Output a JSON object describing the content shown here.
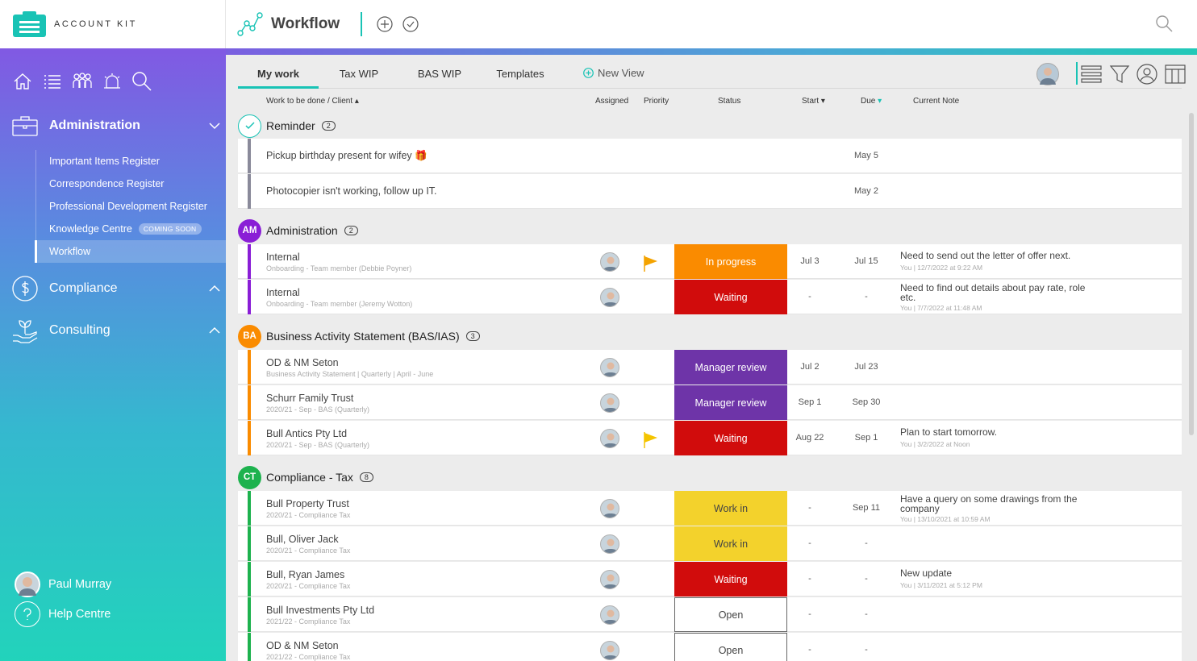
{
  "brand": {
    "name": "ACCOUNT KIT",
    "accent": "#19c3b5"
  },
  "header": {
    "title": "Workflow"
  },
  "sidebar": {
    "sections": [
      {
        "label": "Administration"
      },
      {
        "label": "Compliance"
      },
      {
        "label": "Consulting"
      }
    ],
    "admin_items": [
      {
        "label": "Important Items Register"
      },
      {
        "label": "Correspondence Register"
      },
      {
        "label": "Professional Development Register"
      },
      {
        "label": "Knowledge Centre",
        "badge": "COMING SOON"
      },
      {
        "label": "Workflow"
      }
    ],
    "user": {
      "name": "Paul Murray"
    },
    "help": {
      "label": "Help Centre"
    }
  },
  "tabs": [
    {
      "label": "My work"
    },
    {
      "label": "Tax WIP"
    },
    {
      "label": "BAS WIP"
    },
    {
      "label": "Templates"
    }
  ],
  "new_view": {
    "label": "New View"
  },
  "columns": {
    "work": "Work to be done / Client",
    "assigned": "Assigned",
    "priority": "Priority",
    "status": "Status",
    "start": "Start",
    "due": "Due",
    "note": "Current Note"
  },
  "groups": [
    {
      "badge": "",
      "title": "Reminder",
      "count": "2",
      "color": "#19c3b5",
      "rows": [
        {
          "title": "Pickup birthday present for wifey 🎁",
          "due": "May 5"
        },
        {
          "title": "Photocopier isn't working, follow up IT.",
          "due": "May 2"
        }
      ]
    },
    {
      "badge": "AM",
      "title": "Administration",
      "count": "2",
      "color": "#8a1ed6",
      "rows": [
        {
          "title": "Internal",
          "sub": "Onboarding - Team member (Debbie Poyner)",
          "status": "In progress",
          "start": "Jul 3",
          "due": "Jul 15",
          "note": "Need to send out the letter of offer next.",
          "note_meta": "You | 12/7/2022 at 9:22 AM"
        },
        {
          "title": "Internal",
          "sub": "Onboarding - Team member (Jeremy Wotton)",
          "status": "Waiting",
          "start": "-",
          "due": "-",
          "note": "Need to find out details about pay rate, role etc.",
          "note_meta": "You | 7/7/2022 at 11:48 AM"
        }
      ]
    },
    {
      "badge": "BA",
      "title": "Business Activity Statement (BAS/IAS)",
      "count": "3",
      "color": "#fa8b00",
      "rows": [
        {
          "title": "OD & NM Seton",
          "sub": "Business Activity Statement | Quarterly | April - June",
          "status": "Manager review",
          "start": "Jul 2",
          "due": "Jul 23",
          "note": "",
          "note_meta": ""
        },
        {
          "title": "Schurr Family Trust",
          "sub": "2020/21 - Sep - BAS (Quarterly)",
          "status": "Manager review",
          "start": "Sep 1",
          "due": "Sep 30",
          "note": "",
          "note_meta": ""
        },
        {
          "title": "Bull Antics Pty Ltd",
          "sub": "2020/21 - Sep - BAS (Quarterly)",
          "status": "Waiting",
          "start": "Aug 22",
          "due": "Sep 1",
          "note": "Plan to start tomorrow.",
          "note_meta": "You | 3/2/2022 at Noon"
        }
      ]
    },
    {
      "badge": "CT",
      "title": "Compliance - Tax",
      "count": "8",
      "color": "#1db24e",
      "rows": [
        {
          "title": "Bull Property Trust",
          "sub": "2020/21 - Compliance Tax",
          "status": "Work in",
          "start": "-",
          "due": "Sep 11",
          "note": "Have a query on some drawings from the company",
          "note_meta": "You | 13/10/2021 at 10:59 AM"
        },
        {
          "title": "Bull, Oliver Jack",
          "sub": "2020/21 - Compliance Tax",
          "status": "Work in",
          "start": "-",
          "due": "-",
          "note": "",
          "note_meta": ""
        },
        {
          "title": "Bull, Ryan James",
          "sub": "2020/21 - Compliance Tax",
          "status": "Waiting",
          "start": "-",
          "due": "-",
          "note": "New update",
          "note_meta": "You | 3/11/2021 at 5:12 PM"
        },
        {
          "title": "Bull Investments Pty Ltd",
          "sub": "2021/22 - Compliance Tax",
          "status": "Open",
          "start": "-",
          "due": "-",
          "note": "",
          "note_meta": ""
        },
        {
          "title": "OD & NM Seton",
          "sub": "2021/22 - Compliance Tax",
          "status": "Open",
          "start": "-",
          "due": "-",
          "note": "",
          "note_meta": ""
        }
      ]
    }
  ],
  "icons": [
    "home-icon",
    "list-icon",
    "team-icon",
    "alarm-icon",
    "search-icon",
    "briefcase-icon",
    "dollar-icon",
    "plant-hand-icon",
    "chevron-down-icon",
    "chevron-up-icon",
    "plus-circle-icon",
    "check-circle-icon",
    "list-view-icon",
    "filter-icon",
    "user-circle-icon",
    "columns-icon",
    "flag-icon"
  ],
  "colors": {
    "in_progress": "#fa8b00",
    "waiting": "#d10c0c",
    "manager_review": "#6e34a8",
    "work_in": "#f3d22c"
  }
}
